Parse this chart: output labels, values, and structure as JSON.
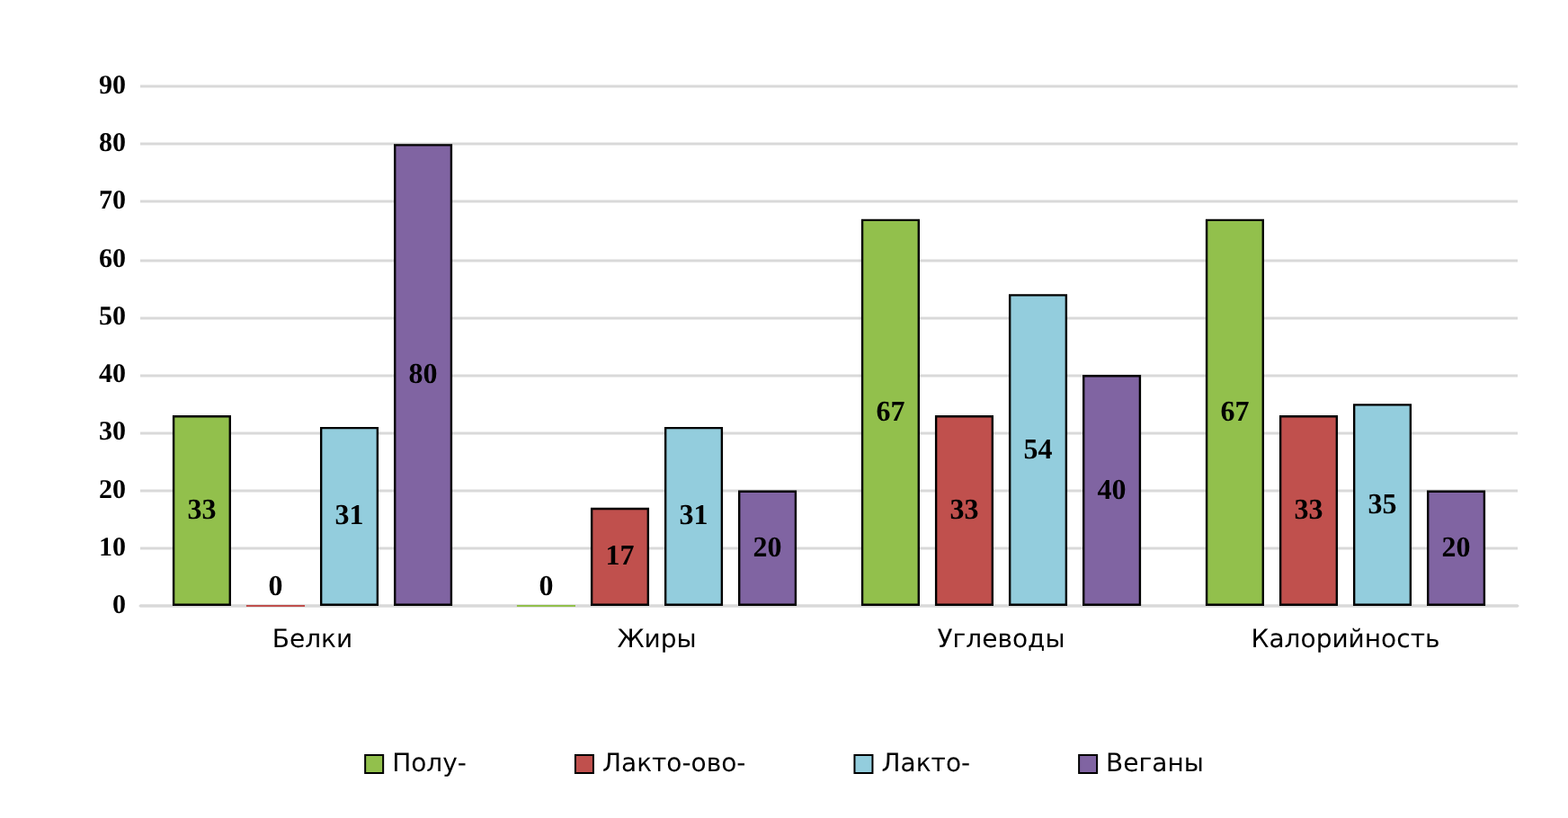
{
  "chart_data": {
    "type": "bar",
    "categories": [
      "Белки",
      "Жиры",
      "Углеводы",
      "Калорийность"
    ],
    "series": [
      {
        "name": "Полу-",
        "color": "#92c04c",
        "values": [
          33,
          0,
          67,
          67
        ]
      },
      {
        "name": "Лакто-ово-",
        "color": "#c0504d",
        "values": [
          0,
          17,
          33,
          33
        ]
      },
      {
        "name": "Лакто-",
        "color": "#93cddd",
        "values": [
          31,
          31,
          54,
          35
        ]
      },
      {
        "name": "Веганы",
        "color": "#8064a2",
        "values": [
          80,
          20,
          40,
          20
        ]
      }
    ],
    "ylim": [
      0,
      90
    ],
    "yticks": [
      0,
      10,
      20,
      30,
      40,
      50,
      60,
      70,
      80,
      90
    ],
    "grid": "y",
    "legend": "bottom",
    "data_labels": true
  }
}
